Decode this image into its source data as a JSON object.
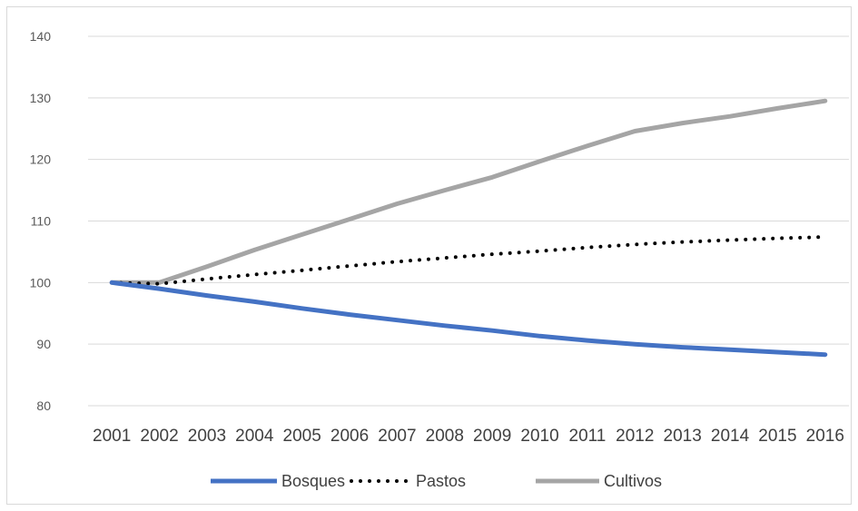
{
  "chart_data": {
    "type": "line",
    "title": "",
    "xlabel": "",
    "ylabel": "",
    "ylim": [
      80,
      140
    ],
    "y_ticks": [
      "80",
      "90",
      "100",
      "110",
      "120",
      "130",
      "140"
    ],
    "categories": [
      "2001",
      "2002",
      "2003",
      "2004",
      "2005",
      "2006",
      "2007",
      "2008",
      "2009",
      "2010",
      "2011",
      "2012",
      "2013",
      "2014",
      "2015",
      "2016"
    ],
    "grid": "horizontal",
    "legend_position": "bottom",
    "series": [
      {
        "name": "Bosques",
        "color": "#4472c4",
        "style": "solid",
        "values": [
          100,
          99.0,
          97.9,
          96.9,
          95.8,
          94.8,
          93.9,
          93.0,
          92.2,
          91.3,
          90.6,
          90.0,
          89.5,
          89.1,
          88.7,
          88.3
        ]
      },
      {
        "name": "Pastos",
        "color": "#000000",
        "style": "dotted",
        "values": [
          100,
          99.8,
          100.6,
          101.3,
          102.0,
          102.7,
          103.4,
          104.0,
          104.6,
          105.1,
          105.7,
          106.2,
          106.6,
          106.9,
          107.2,
          107.4
        ]
      },
      {
        "name": "Cultivos",
        "color": "#a5a5a5",
        "style": "solid",
        "values": [
          100,
          100.0,
          102.6,
          105.3,
          107.8,
          110.3,
          112.8,
          115.0,
          117.1,
          119.7,
          122.2,
          124.6,
          125.9,
          127.0,
          128.3,
          129.5
        ]
      }
    ]
  }
}
